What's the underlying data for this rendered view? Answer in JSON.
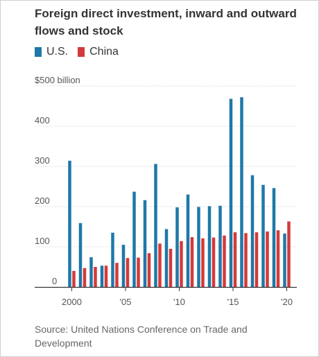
{
  "chart_data": {
    "type": "bar",
    "title": "Foreign direct investment, inward and outward flows and stock",
    "source": "Source: United Nations Conference on Trade and Development",
    "y_unit_label": "$500 billion",
    "ylim": [
      0,
      500
    ],
    "yticks": [
      0,
      100,
      200,
      300,
      400
    ],
    "grid": true,
    "legend_position": "top-left",
    "x": [
      2000,
      2001,
      2002,
      2003,
      2004,
      2005,
      2006,
      2007,
      2008,
      2009,
      2010,
      2011,
      2012,
      2013,
      2014,
      2015,
      2016,
      2017,
      2018,
      2019,
      2020
    ],
    "xtick_labels": [
      {
        "year": 2000,
        "label": "2000"
      },
      {
        "year": 2005,
        "label": "'05"
      },
      {
        "year": 2010,
        "label": "'10"
      },
      {
        "year": 2015,
        "label": "'15"
      },
      {
        "year": 2020,
        "label": "'20"
      }
    ],
    "series": [
      {
        "name": "U.S.",
        "color": "#1f78a8",
        "values": [
          314,
          159,
          74,
          53,
          135,
          105,
          237,
          216,
          306,
          144,
          198,
          230,
          199,
          201,
          202,
          468,
          472,
          278,
          254,
          246,
          133
        ]
      },
      {
        "name": "China",
        "color": "#d33a3a",
        "values": [
          40,
          47,
          50,
          53,
          60,
          72,
          73,
          84,
          108,
          95,
          114,
          124,
          121,
          123,
          128,
          136,
          134,
          136,
          138,
          141,
          163
        ]
      }
    ]
  }
}
